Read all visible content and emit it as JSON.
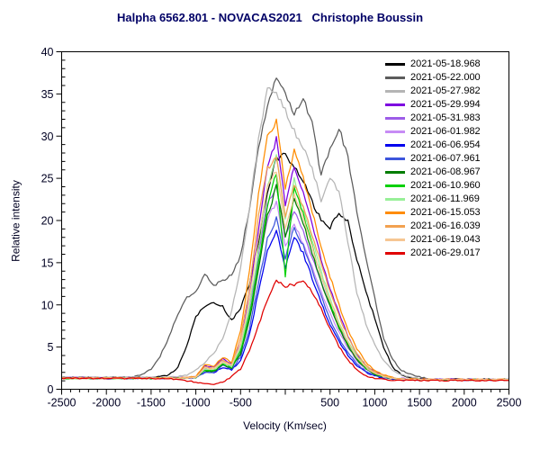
{
  "window": {
    "background": "#ffffff"
  },
  "colors": {
    "title_text": "#000066",
    "axis_text": "#000022",
    "frame": "#000000"
  },
  "chart_data": {
    "type": "line",
    "title": "Halpha 6562.801 - NOVACAS2021   Christophe Boussin",
    "xlabel": "Velocity (Km/sec)",
    "ylabel": "Relative intensity",
    "xlim": [
      -2500,
      2500
    ],
    "ylim": [
      0,
      40
    ],
    "grid": false,
    "legend_position": "top-right-inside",
    "x_major_step": 500,
    "x_minor_step": 100,
    "y_major_step": 5,
    "y_minor_step": 1,
    "x_tick_values": [
      -2500,
      -2000,
      -1500,
      -1000,
      -500,
      0,
      500,
      1000,
      1500,
      2000,
      2500
    ],
    "x_tick_labels": [
      "-2500",
      "-2000",
      "-1500",
      "-1000",
      "-500",
      "",
      "500",
      "1000",
      "1500",
      "2000",
      "2500"
    ],
    "y_tick_values": [
      0,
      5,
      10,
      15,
      20,
      25,
      30,
      35,
      40
    ],
    "y_tick_labels": [
      "0",
      "5",
      "10",
      "15",
      "20",
      "25",
      "30",
      "35",
      "40"
    ],
    "x_values": [
      -2500,
      -2400,
      -2300,
      -2200,
      -2100,
      -2000,
      -1900,
      -1800,
      -1700,
      -1600,
      -1500,
      -1400,
      -1300,
      -1200,
      -1100,
      -1000,
      -900,
      -800,
      -700,
      -600,
      -500,
      -400,
      -300,
      -200,
      -100,
      0,
      100,
      200,
      300,
      400,
      500,
      600,
      700,
      800,
      900,
      1000,
      1100,
      1200,
      1300,
      1400,
      1500,
      1600,
      1700,
      1800,
      1900,
      2000,
      2100,
      2200,
      2300,
      2400,
      2500
    ],
    "series": [
      {
        "name": "2021-05-18.968",
        "color": "#000000",
        "values": [
          1.4,
          1.35,
          1.4,
          1.38,
          1.42,
          1.37,
          1.4,
          1.36,
          1.41,
          1.38,
          1.45,
          1.5,
          1.7,
          2.6,
          5.2,
          8.6,
          9.9,
          10.2,
          9.8,
          8.2,
          9.6,
          12.5,
          17.5,
          23.5,
          27.3,
          27.8,
          26.3,
          24.6,
          22.2,
          20.0,
          19.2,
          20.8,
          19.8,
          15.5,
          11.5,
          8.5,
          5.0,
          2.6,
          1.7,
          1.35,
          1.25,
          1.2,
          1.2,
          1.18,
          1.2,
          1.17,
          1.2,
          1.18,
          1.2,
          1.19,
          1.2
        ]
      },
      {
        "name": "2021-05-22.000",
        "color": "#5c5c5c",
        "values": [
          1.4,
          1.38,
          1.42,
          1.39,
          1.41,
          1.37,
          1.42,
          1.4,
          1.5,
          1.8,
          2.4,
          3.9,
          6.2,
          9.0,
          10.9,
          11.5,
          13.6,
          12.3,
          12.9,
          13.6,
          15.8,
          21.5,
          28.5,
          33.8,
          37.2,
          35.2,
          32.8,
          34.4,
          31.5,
          25.3,
          28.6,
          30.9,
          27.5,
          21.0,
          15.5,
          10.8,
          6.0,
          3.5,
          2.2,
          1.8,
          1.45,
          1.25,
          1.15,
          1.1,
          1.12,
          1.1,
          1.08,
          1.1,
          1.07,
          1.1,
          1.08
        ]
      },
      {
        "name": "2021-05-27.982",
        "color": "#b5b5b5",
        "values": [
          1.4,
          1.37,
          1.41,
          1.38,
          1.4,
          1.36,
          1.4,
          1.38,
          1.42,
          1.39,
          1.41,
          1.38,
          1.42,
          1.5,
          1.7,
          2.3,
          3.2,
          4.2,
          6.0,
          9.2,
          14.5,
          21.5,
          29.5,
          35.5,
          34.9,
          33.2,
          30.6,
          28.6,
          26.2,
          22.3,
          25.0,
          23.4,
          17.5,
          11.5,
          7.8,
          5.2,
          3.4,
          2.3,
          1.7,
          1.4,
          1.25,
          1.15,
          1.1,
          1.1,
          1.08,
          1.1,
          1.07,
          1.1,
          1.08,
          1.1,
          1.07
        ]
      },
      {
        "name": "2021-05-29.994",
        "color": "#7d00e0",
        "values": [
          1.35,
          1.33,
          1.36,
          1.34,
          1.35,
          1.32,
          1.36,
          1.33,
          1.35,
          1.34,
          1.36,
          1.33,
          1.35,
          1.34,
          1.4,
          1.5,
          2.8,
          2.6,
          3.6,
          3.0,
          5.5,
          11.0,
          19.0,
          26.5,
          29.6,
          22.0,
          26.5,
          23.5,
          19.5,
          15.5,
          12.0,
          9.0,
          6.3,
          4.2,
          2.8,
          2.0,
          1.6,
          1.35,
          1.25,
          1.2,
          1.18,
          1.2,
          1.17,
          1.2,
          1.18,
          1.16,
          1.18,
          1.15,
          1.17,
          1.15,
          1.16
        ]
      },
      {
        "name": "2021-05-31.983",
        "color": "#9d5ce8",
        "values": [
          1.35,
          1.34,
          1.33,
          1.35,
          1.32,
          1.35,
          1.33,
          1.34,
          1.35,
          1.33,
          1.34,
          1.32,
          1.35,
          1.33,
          1.38,
          1.45,
          2.5,
          2.4,
          3.2,
          2.8,
          4.8,
          9.5,
          16.0,
          22.0,
          24.1,
          18.0,
          21.2,
          18.6,
          15.6,
          12.6,
          9.9,
          7.4,
          5.3,
          3.7,
          2.6,
          1.9,
          1.5,
          1.3,
          1.22,
          1.2,
          1.17,
          1.19,
          1.16,
          1.18,
          1.15,
          1.17,
          1.14,
          1.16,
          1.13,
          1.15,
          1.14
        ]
      },
      {
        "name": "2021-06-01.982",
        "color": "#c78cf5",
        "values": [
          1.3,
          1.32,
          1.3,
          1.33,
          1.3,
          1.31,
          1.3,
          1.32,
          1.3,
          1.31,
          1.3,
          1.32,
          1.3,
          1.31,
          1.35,
          1.42,
          2.3,
          2.2,
          3.0,
          2.6,
          4.4,
          8.8,
          14.8,
          20.2,
          22.1,
          17.0,
          19.6,
          17.2,
          14.4,
          11.6,
          9.0,
          6.8,
          4.9,
          3.4,
          2.4,
          1.8,
          1.45,
          1.28,
          1.2,
          1.18,
          1.16,
          1.17,
          1.15,
          1.16,
          1.14,
          1.15,
          1.13,
          1.14,
          1.12,
          1.13,
          1.12
        ]
      },
      {
        "name": "2021-06-06.954",
        "color": "#0000ee",
        "values": [
          1.3,
          1.28,
          1.31,
          1.29,
          1.3,
          1.27,
          1.3,
          1.28,
          1.31,
          1.29,
          1.3,
          1.28,
          1.3,
          1.29,
          1.32,
          1.38,
          2.0,
          1.9,
          2.6,
          2.3,
          3.4,
          6.5,
          11.5,
          16.5,
          18.9,
          14.5,
          18.1,
          16.1,
          13.2,
          10.2,
          7.7,
          5.7,
          4.0,
          2.8,
          2.0,
          1.6,
          1.35,
          1.22,
          1.18,
          1.15,
          1.13,
          1.14,
          1.12,
          1.13,
          1.11,
          1.12,
          1.1,
          1.12,
          1.1,
          1.11,
          1.1
        ]
      },
      {
        "name": "2021-06-07.961",
        "color": "#3c55dc",
        "values": [
          1.3,
          1.29,
          1.31,
          1.28,
          1.3,
          1.29,
          1.31,
          1.28,
          1.3,
          1.29,
          1.3,
          1.28,
          1.31,
          1.29,
          1.33,
          1.4,
          2.1,
          2.0,
          2.8,
          2.4,
          3.8,
          7.2,
          12.6,
          17.8,
          20.3,
          15.5,
          19.2,
          17.0,
          14.0,
          11.0,
          8.3,
          6.1,
          4.3,
          3.0,
          2.1,
          1.65,
          1.4,
          1.25,
          1.18,
          1.15,
          1.14,
          1.13,
          1.14,
          1.12,
          1.13,
          1.11,
          1.12,
          1.1,
          1.11,
          1.1,
          1.1
        ]
      },
      {
        "name": "2021-06-08.967",
        "color": "#007d00",
        "values": [
          1.3,
          1.31,
          1.29,
          1.32,
          1.3,
          1.28,
          1.31,
          1.29,
          1.3,
          1.32,
          1.29,
          1.3,
          1.28,
          1.31,
          1.34,
          1.4,
          2.2,
          2.1,
          2.9,
          2.5,
          4.2,
          8.2,
          14.2,
          20.5,
          24.0,
          18.0,
          22.8,
          19.8,
          16.2,
          12.8,
          9.8,
          7.2,
          5.1,
          3.5,
          2.4,
          1.8,
          1.45,
          1.28,
          1.2,
          1.17,
          1.15,
          1.16,
          1.14,
          1.15,
          1.13,
          1.14,
          1.12,
          1.13,
          1.11,
          1.12,
          1.11
        ]
      },
      {
        "name": "2021-06-10.960",
        "color": "#00d000",
        "values": [
          1.3,
          1.3,
          1.28,
          1.31,
          1.29,
          1.3,
          1.28,
          1.31,
          1.29,
          1.3,
          1.28,
          1.3,
          1.29,
          1.31,
          1.33,
          1.41,
          2.3,
          2.2,
          3.0,
          2.6,
          4.5,
          8.8,
          15.0,
          21.5,
          25.8,
          13.5,
          24.2,
          20.8,
          17.0,
          13.4,
          10.2,
          7.6,
          5.4,
          3.7,
          2.5,
          1.85,
          1.5,
          1.3,
          1.2,
          1.17,
          1.15,
          1.14,
          1.16,
          1.13,
          1.15,
          1.12,
          1.14,
          1.11,
          1.13,
          1.11,
          1.12
        ]
      },
      {
        "name": "2021-06-11.969",
        "color": "#98f098",
        "values": [
          1.32,
          1.3,
          1.31,
          1.29,
          1.32,
          1.3,
          1.28,
          1.31,
          1.3,
          1.32,
          1.29,
          1.31,
          1.3,
          1.32,
          1.35,
          1.42,
          2.4,
          2.3,
          3.1,
          2.7,
          5.0,
          9.8,
          16.5,
          24.0,
          28.0,
          20.0,
          24.8,
          21.4,
          17.6,
          14.0,
          10.8,
          8.0,
          5.7,
          3.9,
          2.7,
          1.95,
          1.55,
          1.32,
          1.22,
          1.18,
          1.16,
          1.17,
          1.14,
          1.16,
          1.13,
          1.15,
          1.12,
          1.14,
          1.12,
          1.13,
          1.12
        ]
      },
      {
        "name": "2021-06-15.053",
        "color": "#ff8c00",
        "values": [
          1.35,
          1.33,
          1.35,
          1.32,
          1.34,
          1.33,
          1.35,
          1.32,
          1.34,
          1.33,
          1.35,
          1.33,
          1.34,
          1.32,
          1.38,
          1.5,
          2.9,
          2.7,
          3.8,
          3.2,
          7.0,
          14.0,
          23.0,
          30.0,
          31.9,
          24.0,
          28.2,
          25.0,
          21.0,
          17.0,
          13.4,
          10.0,
          7.1,
          4.8,
          3.2,
          2.2,
          1.7,
          1.38,
          1.25,
          1.2,
          1.18,
          1.19,
          1.16,
          1.18,
          1.15,
          1.17,
          1.14,
          1.16,
          1.13,
          1.15,
          1.13
        ]
      },
      {
        "name": "2021-06-16.039",
        "color": "#f2a150",
        "values": [
          1.33,
          1.31,
          1.33,
          1.3,
          1.32,
          1.31,
          1.33,
          1.3,
          1.32,
          1.31,
          1.33,
          1.31,
          1.32,
          1.3,
          1.36,
          1.45,
          2.6,
          2.5,
          3.4,
          2.9,
          6.0,
          12.2,
          20.5,
          26.2,
          27.4,
          20.5,
          24.4,
          21.6,
          18.2,
          14.8,
          11.6,
          8.7,
          6.2,
          4.2,
          2.9,
          2.05,
          1.6,
          1.34,
          1.23,
          1.19,
          1.17,
          1.18,
          1.15,
          1.17,
          1.14,
          1.16,
          1.13,
          1.15,
          1.12,
          1.14,
          1.12
        ]
      },
      {
        "name": "2021-06-19.043",
        "color": "#f6c693",
        "values": [
          1.32,
          1.3,
          1.32,
          1.29,
          1.31,
          1.3,
          1.32,
          1.29,
          1.31,
          1.3,
          1.32,
          1.3,
          1.31,
          1.29,
          1.34,
          1.42,
          2.5,
          2.4,
          3.2,
          2.8,
          5.4,
          10.8,
          18.0,
          24.2,
          25.9,
          19.0,
          23.0,
          20.2,
          16.8,
          13.5,
          10.4,
          7.8,
          5.5,
          3.8,
          2.6,
          1.9,
          1.5,
          1.3,
          1.2,
          1.18,
          1.16,
          1.17,
          1.14,
          1.16,
          1.13,
          1.15,
          1.12,
          1.14,
          1.11,
          1.13,
          1.11
        ]
      },
      {
        "name": "2021-06-29.017",
        "color": "#e00000",
        "values": [
          1.3,
          1.28,
          1.3,
          1.27,
          1.29,
          1.28,
          1.3,
          1.27,
          1.29,
          1.28,
          1.3,
          1.28,
          1.25,
          1.15,
          1.0,
          0.85,
          0.62,
          0.6,
          0.85,
          1.5,
          2.4,
          4.6,
          7.6,
          10.6,
          12.9,
          12.2,
          12.4,
          12.9,
          11.6,
          9.6,
          7.2,
          5.1,
          3.5,
          2.3,
          1.6,
          1.3,
          1.15,
          1.08,
          1.05,
          1.05,
          1.05,
          1.04,
          1.05,
          1.03,
          1.05,
          1.04,
          1.05,
          1.03,
          1.04,
          1.03,
          1.04
        ]
      }
    ]
  }
}
